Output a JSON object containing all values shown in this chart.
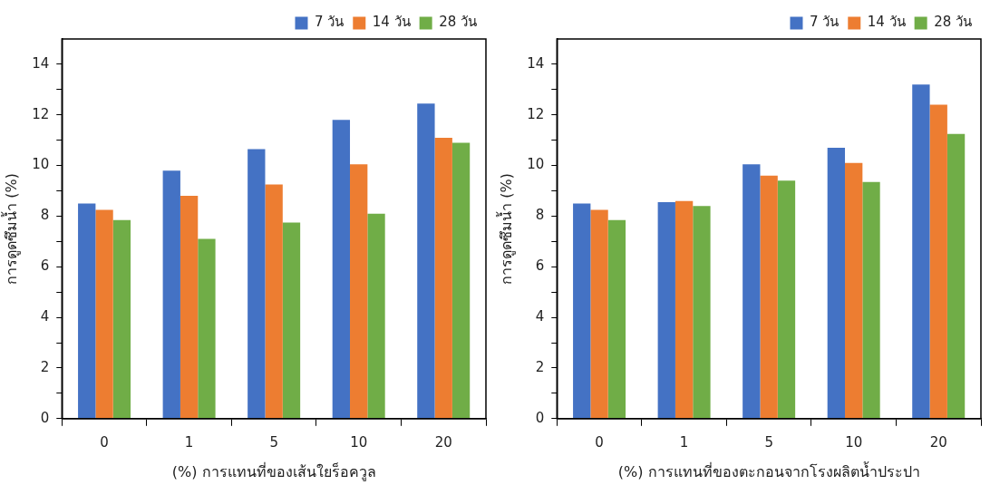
{
  "chart_data": [
    {
      "type": "bar",
      "xlabel": "(%) การแทนที่ของเส้นใยร็อควูล",
      "ylabel": "การดูดซึมน้ำ (%)",
      "categories": [
        "0",
        "1",
        "5",
        "10",
        "20"
      ],
      "series": [
        {
          "name": "7 วัน",
          "color": "#4472c4",
          "values": [
            8.5,
            9.8,
            10.65,
            11.8,
            12.45
          ]
        },
        {
          "name": "14 วัน",
          "color": "#ed7d31",
          "values": [
            8.25,
            8.8,
            9.25,
            10.05,
            11.1
          ]
        },
        {
          "name": "28 วัน",
          "color": "#70ad47",
          "values": [
            7.85,
            7.1,
            7.75,
            8.1,
            10.9
          ]
        }
      ],
      "ylim": [
        0,
        15
      ],
      "yticks": [
        0,
        {
          "value": 1,
          "label": null
        },
        2,
        {
          "value": 3,
          "label": null
        },
        4,
        {
          "value": 5,
          "label": null
        },
        6,
        {
          "value": 7,
          "label": null
        },
        8,
        {
          "value": 9,
          "label": null
        },
        10,
        {
          "value": 11,
          "label": null
        },
        12,
        {
          "value": 13,
          "label": null
        },
        14
      ],
      "grid": false,
      "legend": "top right"
    },
    {
      "type": "bar",
      "xlabel": "(%) การแทนที่ของตะกอนจากโรงผลิตน้ำประปา",
      "ylabel": "การดูดซึมน้ำ (%)",
      "categories": [
        "0",
        "1",
        "5",
        "10",
        "20"
      ],
      "series": [
        {
          "name": "7 วัน",
          "color": "#4472c4",
          "values": [
            8.5,
            8.55,
            10.05,
            10.7,
            13.2
          ]
        },
        {
          "name": "14 วัน",
          "color": "#ed7d31",
          "values": [
            8.25,
            8.6,
            9.6,
            10.1,
            12.4
          ]
        },
        {
          "name": "28 วัน",
          "color": "#70ad47",
          "values": [
            7.85,
            8.4,
            9.4,
            9.35,
            11.25
          ]
        }
      ],
      "ylim": [
        0,
        15
      ],
      "yticks": [
        0,
        {
          "value": 1,
          "label": null
        },
        2,
        {
          "value": 3,
          "label": null
        },
        4,
        {
          "value": 5,
          "label": null
        },
        6,
        {
          "value": 7,
          "label": null
        },
        8,
        {
          "value": 9,
          "label": null
        },
        10,
        {
          "value": 11,
          "label": null
        },
        12,
        {
          "value": 13,
          "label": null
        },
        14
      ],
      "grid": false,
      "legend": "top right"
    }
  ]
}
